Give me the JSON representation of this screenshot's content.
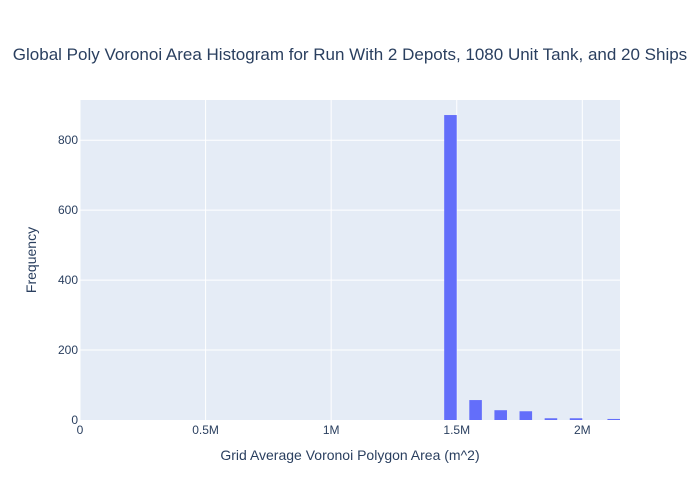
{
  "chart_data": {
    "type": "bar",
    "title": "Global Poly Voronoi Area Histogram for Run With 2 Depots, 1080 Unit Tank, and 20 Ships",
    "xlabel": "Grid Average Voronoi Polygon Area (m^2)",
    "ylabel": "Frequency",
    "xlim": [
      0,
      2150000
    ],
    "ylim": [
      0,
      915
    ],
    "x_ticks": [
      {
        "value": 0,
        "label": "0"
      },
      {
        "value": 500000,
        "label": "0.5M"
      },
      {
        "value": 1000000,
        "label": "1M"
      },
      {
        "value": 1500000,
        "label": "1.5M"
      },
      {
        "value": 2000000,
        "label": "2M"
      }
    ],
    "y_ticks": [
      {
        "value": 0,
        "label": "0"
      },
      {
        "value": 200,
        "label": "200"
      },
      {
        "value": 400,
        "label": "400"
      },
      {
        "value": 600,
        "label": "600"
      },
      {
        "value": 800,
        "label": "800"
      }
    ],
    "bins": [
      {
        "start": 1450000,
        "end": 1500000,
        "count": 872
      },
      {
        "start": 1550000,
        "end": 1600000,
        "count": 57
      },
      {
        "start": 1650000,
        "end": 1700000,
        "count": 28
      },
      {
        "start": 1750000,
        "end": 1800000,
        "count": 25
      },
      {
        "start": 1850000,
        "end": 1900000,
        "count": 5
      },
      {
        "start": 1950000,
        "end": 2000000,
        "count": 5
      },
      {
        "start": 2100000,
        "end": 2150000,
        "count": 3
      }
    ],
    "bar_color": "#636efa",
    "plot_bgcolor": "#e5ecf6",
    "grid": true
  }
}
